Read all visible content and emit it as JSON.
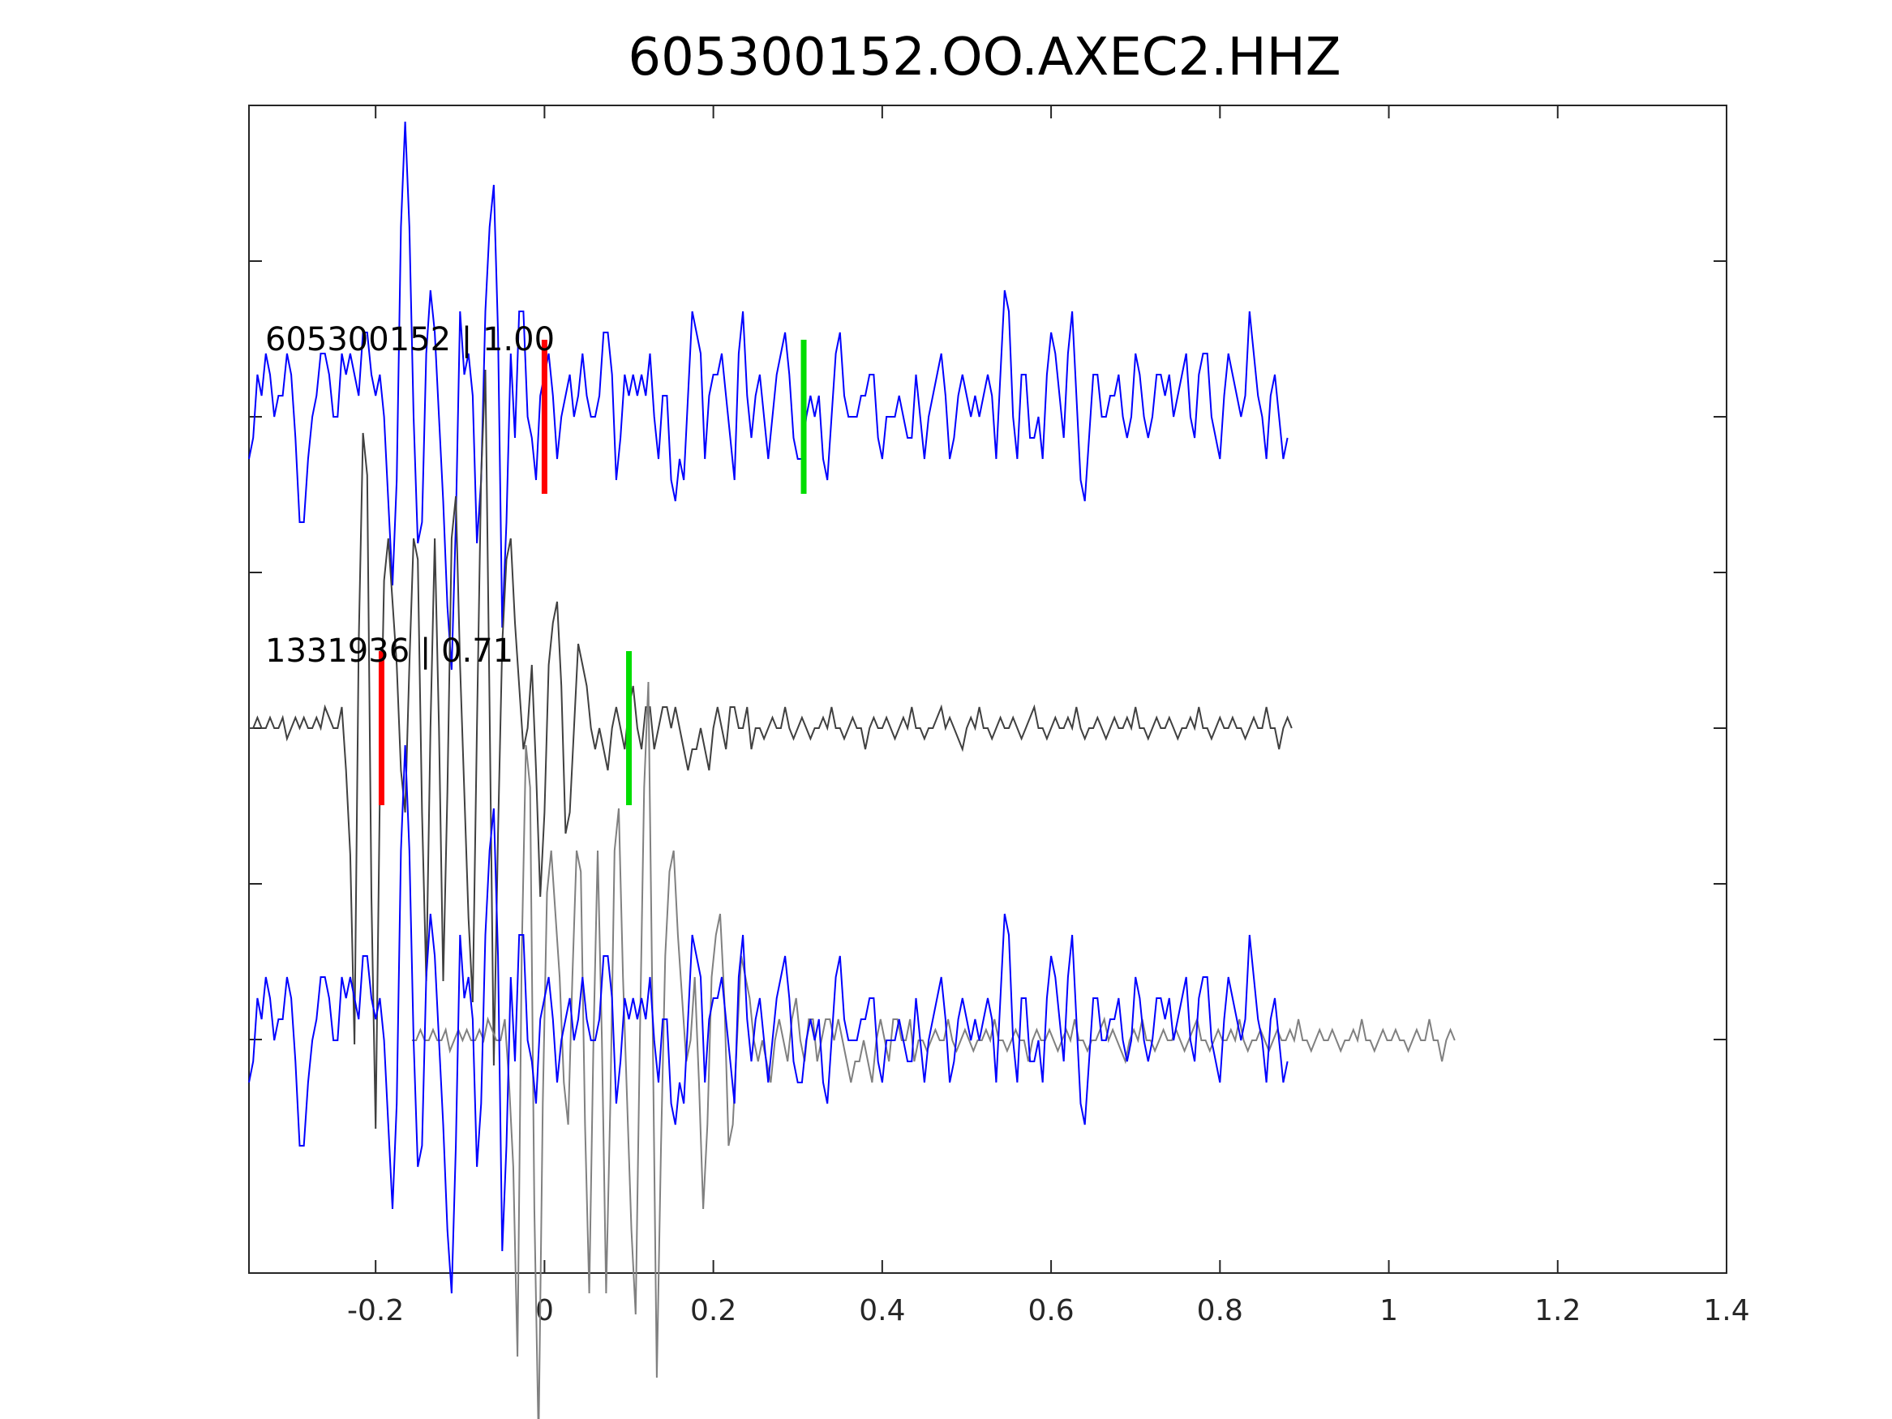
{
  "chart_data": {
    "type": "line",
    "title": "605300152.OO.AXEC2.HHZ",
    "xlabel": "",
    "ylabel": "",
    "xlim": [
      -0.35,
      1.4
    ],
    "xticks": [
      -0.2,
      0,
      0.2,
      0.4,
      0.6,
      0.8,
      1,
      1.2,
      1.4
    ],
    "xtick_labels": [
      "-0.2",
      "0",
      "0.2",
      "0.4",
      "0.6",
      "0.8",
      "1",
      "1.2",
      "1.4"
    ],
    "yticks_count": 6,
    "grid": false,
    "colors": {
      "target": "#0000ff",
      "template": "#404040",
      "template_overlay": "#808080",
      "p_pick": "#ff0000",
      "s_pick": "#00dd00"
    },
    "panels": [
      {
        "label": "605300152 | 1.00",
        "trace": "target",
        "p_pick": 0.0,
        "s_pick": 0.307
      },
      {
        "label": "1331936 | 0.71",
        "trace": "template",
        "p_pick": -0.193,
        "s_pick": 0.1
      },
      {
        "label": "",
        "trace": "overlay"
      }
    ],
    "series": [
      {
        "key": "target",
        "x_start": -0.35,
        "dt": 0.005,
        "values": [
          -0.2,
          -0.1,
          0.2,
          0.1,
          0.3,
          0.2,
          0.0,
          0.1,
          0.1,
          0.3,
          0.2,
          -0.1,
          -0.5,
          -0.5,
          -0.2,
          0.0,
          0.1,
          0.3,
          0.3,
          0.2,
          0.0,
          0.0,
          0.3,
          0.2,
          0.3,
          0.2,
          0.1,
          0.4,
          0.4,
          0.2,
          0.1,
          0.2,
          0.0,
          -0.4,
          -0.8,
          -0.3,
          0.9,
          1.4,
          0.9,
          0.0,
          -0.6,
          -0.5,
          0.3,
          0.6,
          0.4,
          0.0,
          -0.4,
          -0.9,
          -1.2,
          -0.5,
          0.5,
          0.2,
          0.3,
          0.1,
          -0.6,
          -0.3,
          0.5,
          0.9,
          1.1,
          0.4,
          -1.0,
          -0.5,
          0.3,
          -0.1,
          0.5,
          0.5,
          0.0,
          -0.1,
          -0.3,
          0.1,
          0.2,
          0.3,
          0.1,
          -0.2,
          0.0,
          0.1,
          0.2,
          0.0,
          0.1,
          0.3,
          0.1,
          0.0,
          0.0,
          0.1,
          0.4,
          0.4,
          0.2,
          -0.3,
          -0.1,
          0.2,
          0.1,
          0.2,
          0.1,
          0.2,
          0.1,
          0.3,
          0.0,
          -0.2,
          0.1,
          0.1,
          -0.3,
          -0.4,
          -0.2,
          -0.3,
          0.1,
          0.5,
          0.4,
          0.3,
          -0.2,
          0.1,
          0.2,
          0.2,
          0.3,
          0.1,
          -0.1,
          -0.3,
          0.3,
          0.5,
          0.1,
          -0.1,
          0.1,
          0.2,
          0.0,
          -0.2,
          0.0,
          0.2,
          0.3,
          0.4,
          0.2,
          -0.1,
          -0.2,
          -0.2,
          0.0,
          0.1,
          0.0,
          0.1,
          -0.2,
          -0.3,
          0.0,
          0.3,
          0.4,
          0.1,
          0.0,
          0.0,
          0.0,
          0.1,
          0.1,
          0.2,
          0.2,
          -0.1,
          -0.2,
          0.0,
          0.0,
          0.0,
          0.1,
          0.0,
          -0.1,
          -0.1,
          0.2,
          0.0,
          -0.2,
          0.0,
          0.1,
          0.2,
          0.3,
          0.1,
          -0.2,
          -0.1,
          0.1,
          0.2,
          0.1,
          0.0,
          0.1,
          0.0,
          0.1,
          0.2,
          0.1,
          -0.2,
          0.2,
          0.6,
          0.5,
          0.0,
          -0.2,
          0.2,
          0.2,
          -0.1,
          -0.1,
          0.0,
          -0.2,
          0.2,
          0.4,
          0.3,
          0.1,
          -0.1,
          0.3,
          0.5,
          0.1,
          -0.3,
          -0.4,
          -0.1,
          0.2,
          0.2,
          0.0,
          0.0,
          0.1,
          0.1,
          0.2,
          0.0,
          -0.1,
          0.0,
          0.3,
          0.2,
          0.0,
          -0.1,
          0.0,
          0.2,
          0.2,
          0.1,
          0.2,
          0.0,
          0.1,
          0.2,
          0.3,
          0.0,
          -0.1,
          0.2,
          0.3,
          0.3,
          0.0,
          -0.1,
          -0.2,
          0.1,
          0.3,
          0.2,
          0.1,
          0.0,
          0.1,
          0.5,
          0.3,
          0.1,
          0.0,
          -0.2,
          0.1,
          0.2,
          0.0,
          -0.2,
          -0.1
        ]
      },
      {
        "key": "template",
        "x_start": -0.35,
        "dt": 0.005,
        "values": [
          0.0,
          0.0,
          0.05,
          0.0,
          0.0,
          0.05,
          0.0,
          0.0,
          0.05,
          -0.05,
          0.0,
          0.05,
          0.0,
          0.05,
          0.0,
          0.0,
          0.05,
          0.0,
          0.1,
          0.05,
          0.0,
          0.0,
          0.1,
          -0.2,
          -0.6,
          -1.5,
          0.4,
          1.4,
          1.2,
          -0.8,
          -1.9,
          -0.3,
          0.7,
          0.9,
          0.6,
          0.3,
          -0.2,
          -0.4,
          0.3,
          0.9,
          0.8,
          -0.4,
          -1.2,
          0.0,
          0.9,
          0.0,
          -1.2,
          -0.3,
          0.9,
          1.1,
          0.3,
          -0.3,
          -0.9,
          -1.3,
          0.0,
          1.2,
          1.7,
          0.1,
          -1.6,
          -0.5,
          0.4,
          0.8,
          0.9,
          0.5,
          0.2,
          -0.1,
          0.0,
          0.3,
          -0.2,
          -0.8,
          -0.4,
          0.3,
          0.5,
          0.6,
          0.2,
          -0.5,
          -0.4,
          0.0,
          0.4,
          0.3,
          0.2,
          0.0,
          -0.1,
          0.0,
          -0.1,
          -0.2,
          0.0,
          0.1,
          0.0,
          -0.1,
          0.1,
          0.2,
          0.0,
          -0.1,
          0.1,
          0.1,
          -0.1,
          0.0,
          0.1,
          0.1,
          0.0,
          0.1,
          0.0,
          -0.1,
          -0.2,
          -0.1,
          -0.1,
          0.0,
          -0.1,
          -0.2,
          0.0,
          0.1,
          0.0,
          -0.1,
          0.1,
          0.1,
          0.0,
          0.0,
          0.1,
          -0.1,
          0.0,
          0.0,
          -0.05,
          0.0,
          0.05,
          0.0,
          0.0,
          0.1,
          0.0,
          -0.05,
          0.0,
          0.05,
          0.0,
          -0.05,
          0.0,
          0.0,
          0.05,
          0.0,
          0.1,
          0.0,
          0.0,
          -0.05,
          0.0,
          0.05,
          0.0,
          0.0,
          -0.1,
          0.0,
          0.05,
          0.0,
          0.0,
          0.05,
          0.0,
          -0.05,
          0.0,
          0.05,
          0.0,
          0.1,
          0.0,
          0.0,
          -0.05,
          0.0,
          0.0,
          0.05,
          0.1,
          0.0,
          0.05,
          0.0,
          -0.05,
          -0.1,
          0.0,
          0.05,
          0.0,
          0.1,
          0.0,
          0.0,
          -0.05,
          0.0,
          0.05,
          0.0,
          0.0,
          0.05,
          0.0,
          -0.05,
          0.0,
          0.05,
          0.1,
          0.0,
          0.0,
          -0.05,
          0.0,
          0.05,
          0.0,
          0.0,
          0.05,
          0.0,
          0.1,
          0.0,
          -0.05,
          0.0,
          0.0,
          0.05,
          0.0,
          -0.05,
          0.0,
          0.05,
          0.0,
          0.0,
          0.05,
          0.0,
          0.1,
          0.0,
          0.0,
          -0.05,
          0.0,
          0.05,
          0.0,
          0.0,
          0.05,
          0.0,
          -0.05,
          0.0,
          0.0,
          0.05,
          0.0,
          0.1,
          0.0,
          0.0,
          -0.05,
          0.0,
          0.05,
          0.0,
          0.0,
          0.05,
          0.0,
          0.0,
          -0.05,
          0.0,
          0.05,
          0.0,
          0.0,
          0.1,
          0.0,
          0.0,
          -0.1,
          0.0,
          0.05,
          0.0
        ]
      }
    ]
  }
}
